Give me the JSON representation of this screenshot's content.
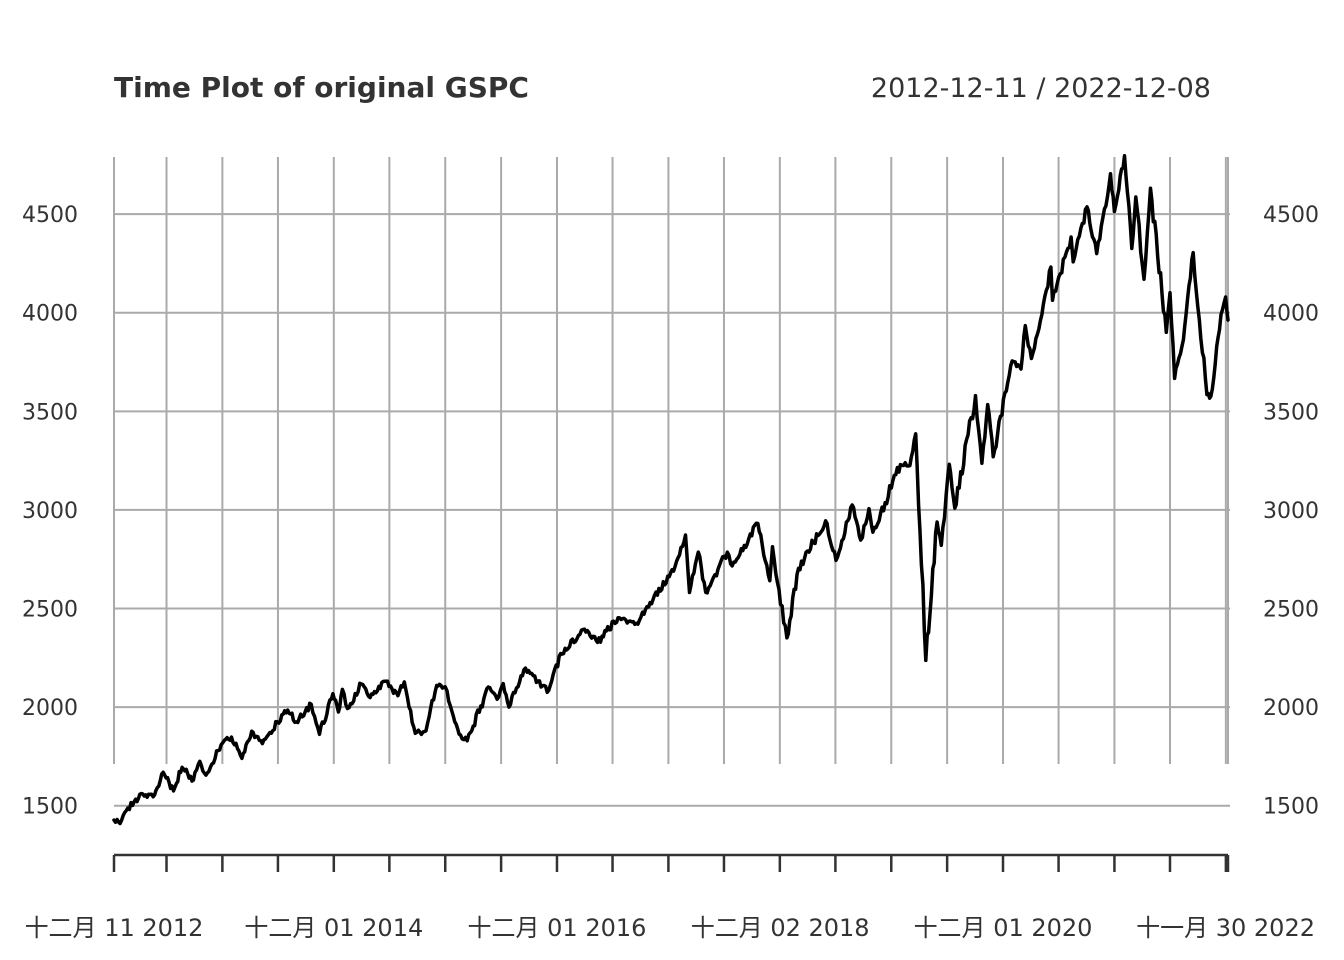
{
  "chart_data": {
    "type": "line",
    "title": "Time Plot of original GSPC",
    "date_range_label": "2012-12-11 / 2022-12-08",
    "x_start": "2012-12-11",
    "x_end": "2022-12-08",
    "ylim": [
      1250,
      4800
    ],
    "y_ticks": [
      1500,
      2000,
      2500,
      3000,
      3500,
      4000,
      4500
    ],
    "y_tick_labels": [
      "1500",
      "2000",
      "2500",
      "3000",
      "3500",
      "4000",
      "4500"
    ],
    "x_tick_labels": [
      {
        "date": "2012-12-11",
        "label": "十二月 11 2012"
      },
      {
        "date": "2014-12-01",
        "label": "十二月 01 2014"
      },
      {
        "date": "2016-12-01",
        "label": "十二月 01 2016"
      },
      {
        "date": "2018-12-02",
        "label": "十二月 02 2018"
      },
      {
        "date": "2020-12-01",
        "label": "十二月 01 2020"
      },
      {
        "date": "2022-11-30",
        "label": "十一月 30 2022"
      }
    ],
    "grid": true,
    "line_color": "#000000",
    "grid_color": "#aaaaaa",
    "series": [
      {
        "points": [
          [
            "2012-12-11",
            1427
          ],
          [
            "2012-12-31",
            1410
          ],
          [
            "2013-01-15",
            1465
          ],
          [
            "2013-02-15",
            1520
          ],
          [
            "2013-03-15",
            1560
          ],
          [
            "2013-04-18",
            1545
          ],
          [
            "2013-05-21",
            1670
          ],
          [
            "2013-06-24",
            1575
          ],
          [
            "2013-07-22",
            1695
          ],
          [
            "2013-08-28",
            1630
          ],
          [
            "2013-09-18",
            1725
          ],
          [
            "2013-10-08",
            1655
          ],
          [
            "2013-11-27",
            1810
          ],
          [
            "2013-12-31",
            1848
          ],
          [
            "2014-02-03",
            1740
          ],
          [
            "2014-03-07",
            1878
          ],
          [
            "2014-04-11",
            1815
          ],
          [
            "2014-05-30",
            1925
          ],
          [
            "2014-07-03",
            1985
          ],
          [
            "2014-07-31",
            1925
          ],
          [
            "2014-09-18",
            2015
          ],
          [
            "2014-10-15",
            1862
          ],
          [
            "2014-11-28",
            2068
          ],
          [
            "2014-12-16",
            1975
          ],
          [
            "2014-12-29",
            2090
          ],
          [
            "2015-01-15",
            1993
          ],
          [
            "2015-03-01",
            2117
          ],
          [
            "2015-03-25",
            2055
          ],
          [
            "2015-05-21",
            2131
          ],
          [
            "2015-06-29",
            2058
          ],
          [
            "2015-07-20",
            2128
          ],
          [
            "2015-08-25",
            1867
          ],
          [
            "2015-09-29",
            1880
          ],
          [
            "2015-11-03",
            2110
          ],
          [
            "2015-12-01",
            2103
          ],
          [
            "2015-12-18",
            2005
          ],
          [
            "2016-01-20",
            1859
          ],
          [
            "2016-02-11",
            1829
          ],
          [
            "2016-04-20",
            2102
          ],
          [
            "2016-05-19",
            2040
          ],
          [
            "2016-06-08",
            2119
          ],
          [
            "2016-06-27",
            2000
          ],
          [
            "2016-08-15",
            2190
          ],
          [
            "2016-11-04",
            2085
          ],
          [
            "2016-12-13",
            2272
          ],
          [
            "2017-03-01",
            2395
          ],
          [
            "2017-04-13",
            2328
          ],
          [
            "2017-06-19",
            2453
          ],
          [
            "2017-08-18",
            2425
          ],
          [
            "2017-10-02",
            2530
          ],
          [
            "2017-12-18",
            2690
          ],
          [
            "2018-01-26",
            2873
          ],
          [
            "2018-02-08",
            2581
          ],
          [
            "2018-03-09",
            2786
          ],
          [
            "2018-04-02",
            2582
          ],
          [
            "2018-06-12",
            2786
          ],
          [
            "2018-06-28",
            2716
          ],
          [
            "2018-09-20",
            2931
          ],
          [
            "2018-10-29",
            2641
          ],
          [
            "2018-11-07",
            2813
          ],
          [
            "2018-11-23",
            2633
          ],
          [
            "2018-12-24",
            2351
          ],
          [
            "2019-01-31",
            2704
          ],
          [
            "2019-04-30",
            2945
          ],
          [
            "2019-06-03",
            2744
          ],
          [
            "2019-07-26",
            3025
          ],
          [
            "2019-08-23",
            2847
          ],
          [
            "2019-09-19",
            3006
          ],
          [
            "2019-10-02",
            2887
          ],
          [
            "2019-12-31",
            3230
          ],
          [
            "2020-01-31",
            3225
          ],
          [
            "2020-02-19",
            3386
          ],
          [
            "2020-03-23",
            2237
          ],
          [
            "2020-04-29",
            2939
          ],
          [
            "2020-05-13",
            2820
          ],
          [
            "2020-06-08",
            3232
          ],
          [
            "2020-06-26",
            3009
          ],
          [
            "2020-09-02",
            3580
          ],
          [
            "2020-09-23",
            3237
          ],
          [
            "2020-10-12",
            3534
          ],
          [
            "2020-10-30",
            3270
          ],
          [
            "2020-12-31",
            3756
          ],
          [
            "2021-01-29",
            3714
          ],
          [
            "2021-02-12",
            3935
          ],
          [
            "2021-03-04",
            3768
          ],
          [
            "2021-05-07",
            4232
          ],
          [
            "2021-05-12",
            4063
          ],
          [
            "2021-07-12",
            4384
          ],
          [
            "2021-07-19",
            4258
          ],
          [
            "2021-09-02",
            4537
          ],
          [
            "2021-10-04",
            4300
          ],
          [
            "2021-11-18",
            4705
          ],
          [
            "2021-12-01",
            4513
          ],
          [
            "2022-01-03",
            4796
          ],
          [
            "2022-01-27",
            4326
          ],
          [
            "2022-02-09",
            4587
          ],
          [
            "2022-03-08",
            4170
          ],
          [
            "2022-03-29",
            4631
          ],
          [
            "2022-05-20",
            3901
          ],
          [
            "2022-06-01",
            4101
          ],
          [
            "2022-06-16",
            3667
          ],
          [
            "2022-07-15",
            3863
          ],
          [
            "2022-08-16",
            4305
          ],
          [
            "2022-09-30",
            3585
          ],
          [
            "2022-10-13",
            3577
          ],
          [
            "2022-11-15",
            3991
          ],
          [
            "2022-11-30",
            4080
          ],
          [
            "2022-12-08",
            3963
          ]
        ]
      }
    ]
  }
}
